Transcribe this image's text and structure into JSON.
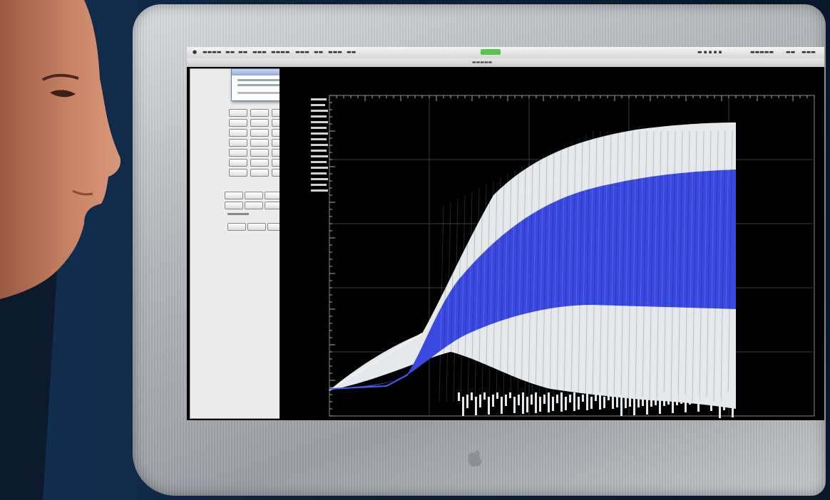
{
  "scene": {
    "subject": "person-viewing-monitor",
    "display_content": "waveform-plot"
  },
  "colors": {
    "wall": "#0c2038",
    "bezel": "#b3b6ba",
    "screen_bg": "#000000",
    "waveform_white": "#e9ecef",
    "waveform_blue": "#3848e0",
    "skin": "#c98466"
  }
}
